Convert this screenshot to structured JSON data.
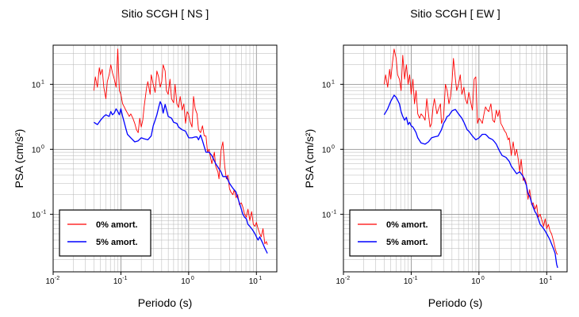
{
  "chart_data": [
    {
      "type": "line",
      "title": "Sitio SCGH [ NS ]",
      "xlabel": "Periodo (s)",
      "ylabel": "PSA (cm/s²)",
      "xscale": "log",
      "yscale": "log",
      "xlim": [
        0.01,
        20
      ],
      "ylim": [
        0.013,
        40
      ],
      "xticks": [
        {
          "base": "10",
          "exp": "-2"
        },
        {
          "base": "10",
          "exp": "-1"
        },
        {
          "base": "10",
          "exp": "0"
        },
        {
          "base": "10",
          "exp": "1"
        }
      ],
      "yticks": [
        {
          "base": "10",
          "exp": "-1"
        },
        {
          "base": "10",
          "exp": "0"
        },
        {
          "base": "10",
          "exp": "1"
        }
      ],
      "grid": true,
      "legend": "bottom-left",
      "series": [
        {
          "name": "0% amort.",
          "color": "#ff0000",
          "x": [
            0.04,
            0.042,
            0.045,
            0.048,
            0.05,
            0.053,
            0.056,
            0.06,
            0.063,
            0.067,
            0.071,
            0.075,
            0.08,
            0.085,
            0.09,
            0.095,
            0.1,
            0.106,
            0.112,
            0.118,
            0.125,
            0.133,
            0.14,
            0.15,
            0.16,
            0.17,
            0.18,
            0.19,
            0.2,
            0.21,
            0.22,
            0.24,
            0.25,
            0.27,
            0.28,
            0.3,
            0.32,
            0.34,
            0.36,
            0.38,
            0.4,
            0.42,
            0.45,
            0.47,
            0.5,
            0.53,
            0.56,
            0.6,
            0.63,
            0.67,
            0.71,
            0.75,
            0.8,
            0.85,
            0.9,
            0.95,
            1.0,
            1.06,
            1.12,
            1.18,
            1.25,
            1.33,
            1.4,
            1.5,
            1.6,
            1.7,
            1.8,
            1.9,
            2.0,
            2.1,
            2.2,
            2.4,
            2.5,
            2.7,
            2.8,
            3.0,
            3.2,
            3.4,
            3.6,
            3.8,
            4.0,
            4.2,
            4.5,
            4.7,
            5.0,
            5.3,
            5.6,
            6.0,
            6.3,
            6.7,
            7.1,
            7.5,
            8.0,
            8.5,
            9.0,
            9.5,
            10.0,
            10.6,
            11.2,
            11.8,
            12.5,
            13.3,
            14.0,
            14.5
          ],
          "values": [
            8,
            13,
            9,
            18,
            14,
            17,
            9,
            6,
            11,
            14,
            20,
            15,
            12,
            9,
            35,
            8,
            7,
            5,
            4.5,
            4,
            3.6,
            3.2,
            3.5,
            3,
            2.5,
            2,
            1.8,
            3,
            2.2,
            2.8,
            4.5,
            9,
            11,
            7,
            14,
            10,
            7.5,
            16,
            13,
            9,
            11,
            20,
            16,
            8,
            7,
            12,
            6,
            5.2,
            10,
            5,
            4.4,
            6.5,
            4,
            5,
            2.5,
            3.8,
            3.4,
            2.6,
            2.2,
            6.5,
            4.2,
            3.5,
            2,
            1.8,
            2.3,
            1.6,
            1.6,
            0.9,
            1,
            0.75,
            0.6,
            0.9,
            0.55,
            0.45,
            0.35,
            0.95,
            1.3,
            0.55,
            0.35,
            0.4,
            0.25,
            0.22,
            0.2,
            0.24,
            0.18,
            0.2,
            0.14,
            0.15,
            0.13,
            0.1,
            0.09,
            0.12,
            0.08,
            0.11,
            0.07,
            0.065,
            0.075,
            0.06,
            0.05,
            0.045,
            0.06,
            0.035,
            0.038,
            0.034
          ]
        },
        {
          "name": "5% amort.",
          "color": "#0000ff",
          "x": [
            0.04,
            0.045,
            0.05,
            0.056,
            0.06,
            0.067,
            0.071,
            0.075,
            0.08,
            0.085,
            0.09,
            0.095,
            0.1,
            0.106,
            0.112,
            0.118,
            0.125,
            0.14,
            0.16,
            0.18,
            0.2,
            0.22,
            0.25,
            0.28,
            0.3,
            0.32,
            0.34,
            0.36,
            0.38,
            0.4,
            0.42,
            0.45,
            0.5,
            0.56,
            0.6,
            0.67,
            0.71,
            0.8,
            0.9,
            1.0,
            1.12,
            1.25,
            1.33,
            1.4,
            1.5,
            1.6,
            1.7,
            1.8,
            2.0,
            2.2,
            2.5,
            2.8,
            3.0,
            3.2,
            3.6,
            4.0,
            4.5,
            5.0,
            5.3,
            5.6,
            6.0,
            6.3,
            6.7,
            7.1,
            7.5,
            8.0,
            8.5,
            9.0,
            9.5,
            10.0,
            10.6,
            11.2,
            11.8,
            12.5,
            13.3,
            14.0,
            14.5
          ],
          "values": [
            2.6,
            2.4,
            2.8,
            3.2,
            3.4,
            3.2,
            3.8,
            3.4,
            3.6,
            4.2,
            3.8,
            3.4,
            4.2,
            3.2,
            2.6,
            2.1,
            1.7,
            1.5,
            1.3,
            1.35,
            1.5,
            1.45,
            1.4,
            1.6,
            2.3,
            2.8,
            3.4,
            4.4,
            5.4,
            4.8,
            3.6,
            4.9,
            3.2,
            3,
            2.6,
            2.5,
            2.2,
            2,
            1.9,
            1.5,
            1.5,
            1.55,
            1.55,
            1.4,
            1.65,
            1.35,
            1.1,
            0.9,
            0.9,
            0.8,
            0.6,
            0.5,
            0.45,
            0.38,
            0.38,
            0.3,
            0.25,
            0.22,
            0.18,
            0.15,
            0.12,
            0.1,
            0.09,
            0.085,
            0.07,
            0.065,
            0.06,
            0.055,
            0.05,
            0.045,
            0.04,
            0.045,
            0.04,
            0.035,
            0.03,
            0.027,
            0.025
          ]
        }
      ]
    },
    {
      "type": "line",
      "title": "Sitio SCGH [ EW ]",
      "xlabel": "Periodo (s)",
      "ylabel": "PSA (cm/s²)",
      "xscale": "log",
      "yscale": "log",
      "xlim": [
        0.01,
        20
      ],
      "ylim": [
        0.013,
        40
      ],
      "xticks": [
        {
          "base": "10",
          "exp": "-2"
        },
        {
          "base": "10",
          "exp": "-1"
        },
        {
          "base": "10",
          "exp": "0"
        },
        {
          "base": "10",
          "exp": "1"
        }
      ],
      "yticks": [
        {
          "base": "10",
          "exp": "-1"
        },
        {
          "base": "10",
          "exp": "0"
        },
        {
          "base": "10",
          "exp": "1"
        }
      ],
      "grid": true,
      "legend": "bottom-left",
      "series": [
        {
          "name": "0% amort.",
          "color": "#ff0000",
          "x": [
            0.04,
            0.042,
            0.045,
            0.048,
            0.05,
            0.053,
            0.056,
            0.06,
            0.063,
            0.067,
            0.071,
            0.075,
            0.08,
            0.085,
            0.09,
            0.095,
            0.1,
            0.106,
            0.112,
            0.118,
            0.125,
            0.133,
            0.14,
            0.15,
            0.16,
            0.17,
            0.18,
            0.19,
            0.2,
            0.21,
            0.22,
            0.24,
            0.25,
            0.27,
            0.28,
            0.3,
            0.32,
            0.34,
            0.36,
            0.38,
            0.4,
            0.42,
            0.45,
            0.47,
            0.5,
            0.53,
            0.56,
            0.6,
            0.63,
            0.67,
            0.71,
            0.75,
            0.8,
            0.85,
            0.9,
            0.95,
            1.0,
            1.06,
            1.12,
            1.18,
            1.25,
            1.33,
            1.4,
            1.5,
            1.6,
            1.7,
            1.8,
            1.9,
            2.0,
            2.1,
            2.2,
            2.4,
            2.5,
            2.7,
            2.8,
            3.0,
            3.2,
            3.4,
            3.6,
            3.8,
            4.0,
            4.2,
            4.5,
            4.7,
            5.0,
            5.3,
            5.6,
            6.0,
            6.3,
            6.7,
            7.1,
            7.5,
            8.0,
            8.5,
            9.0,
            9.5,
            10.0,
            10.6,
            11.2,
            11.8,
            12.5,
            13.3,
            14.0,
            14.5
          ],
          "values": [
            10,
            14,
            9,
            17,
            12,
            22,
            35,
            25,
            14,
            12,
            8,
            28,
            12,
            20,
            10,
            14,
            7,
            12,
            5,
            8,
            3.5,
            3,
            3.5,
            3.2,
            2.8,
            6,
            3.5,
            2.2,
            2.5,
            4.5,
            6,
            3.5,
            4,
            5,
            2.5,
            3,
            10,
            8,
            5,
            6.5,
            11,
            25,
            12,
            8,
            10,
            14,
            7,
            9,
            6,
            5,
            7.5,
            5.5,
            4,
            12,
            13,
            2.5,
            3,
            2.8,
            2.5,
            3.4,
            4.5,
            4,
            3.8,
            5,
            2.8,
            2.6,
            4,
            3.2,
            4,
            2.5,
            2.3,
            1.9,
            1.8,
            1.4,
            1.5,
            0.8,
            1.3,
            0.8,
            1,
            0.7,
            0.45,
            0.7,
            0.33,
            0.36,
            0.3,
            0.17,
            0.24,
            0.14,
            0.15,
            0.12,
            0.14,
            0.09,
            0.1,
            0.08,
            0.065,
            0.085,
            0.06,
            0.07,
            0.055,
            0.05,
            0.04,
            0.03,
            0.025,
            0.024
          ]
        },
        {
          "name": "5% amort.",
          "color": "#0000ff",
          "x": [
            0.04,
            0.045,
            0.05,
            0.056,
            0.06,
            0.067,
            0.071,
            0.075,
            0.08,
            0.085,
            0.09,
            0.095,
            0.1,
            0.106,
            0.112,
            0.118,
            0.125,
            0.14,
            0.16,
            0.18,
            0.2,
            0.22,
            0.25,
            0.28,
            0.3,
            0.32,
            0.34,
            0.36,
            0.38,
            0.4,
            0.42,
            0.45,
            0.5,
            0.56,
            0.6,
            0.67,
            0.71,
            0.8,
            0.9,
            1.0,
            1.12,
            1.25,
            1.33,
            1.4,
            1.5,
            1.6,
            1.7,
            1.8,
            2.0,
            2.2,
            2.5,
            2.8,
            3.0,
            3.2,
            3.6,
            4.0,
            4.5,
            5.0,
            5.3,
            5.6,
            6.0,
            6.3,
            6.7,
            7.1,
            7.5,
            8.0,
            8.5,
            9.0,
            9.5,
            10.0,
            10.6,
            11.2,
            11.8,
            12.5,
            13.3,
            14.0,
            14.5
          ],
          "values": [
            3.4,
            4.2,
            5.5,
            6.8,
            6.3,
            5,
            3.8,
            3.2,
            2.8,
            3.1,
            2.4,
            2.6,
            2.3,
            2.2,
            2,
            1.8,
            1.5,
            1.25,
            1.2,
            1.3,
            1.5,
            1.55,
            1.6,
            2,
            2.5,
            2.8,
            3.2,
            3.3,
            3.6,
            3.9,
            4,
            4.1,
            3.5,
            3,
            2.6,
            2,
            1.9,
            1.6,
            1.4,
            1.5,
            1.7,
            1.7,
            1.6,
            1.5,
            1.45,
            1.4,
            1.3,
            1.2,
            0.95,
            0.8,
            0.75,
            0.65,
            0.55,
            0.5,
            0.42,
            0.45,
            0.38,
            0.28,
            0.21,
            0.19,
            0.15,
            0.13,
            0.11,
            0.1,
            0.085,
            0.07,
            0.065,
            0.06,
            0.055,
            0.05,
            0.045,
            0.04,
            0.035,
            0.03,
            0.025,
            0.017,
            0.015
          ]
        }
      ]
    }
  ]
}
